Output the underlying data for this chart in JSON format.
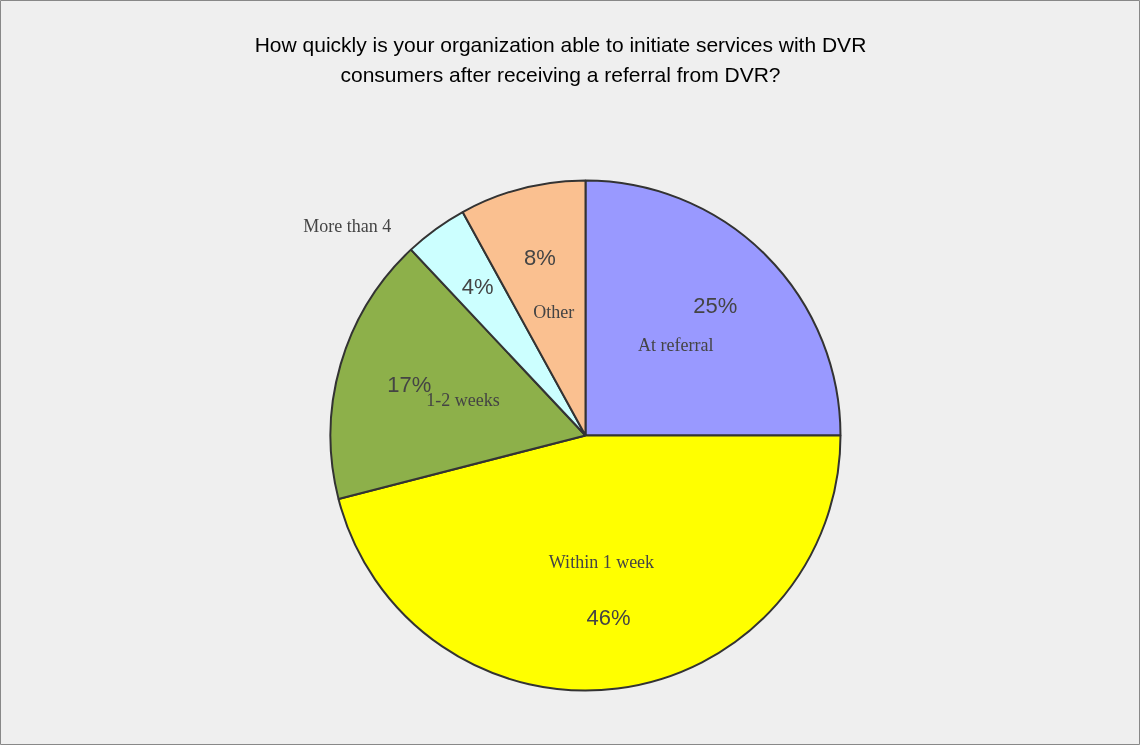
{
  "chart_data": {
    "type": "pie",
    "title": "How quickly is your organization able to initiate services with DVR\nconsumers after receiving a referral from DVR?",
    "categories": [
      "At referral",
      "Within 1 week",
      "1-2 weeks",
      "More than 4",
      "Other"
    ],
    "values": [
      25,
      46,
      17,
      4,
      8
    ],
    "colors": [
      "#9999ff",
      "#ffff00",
      "#8db04a",
      "#ccffff",
      "#fac090"
    ],
    "value_labels": [
      "25%",
      "46%",
      "17%",
      "4%",
      "8%"
    ]
  }
}
